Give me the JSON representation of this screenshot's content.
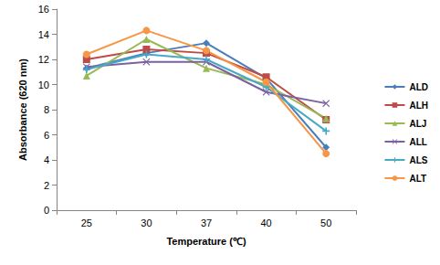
{
  "chart_data": {
    "type": "line",
    "x_label": "Temperature (℃)",
    "y_label": "Absorbance (620 nm)",
    "categories": [
      "25",
      "30",
      "37",
      "40",
      "50"
    ],
    "series": [
      {
        "name": "ALD",
        "color": "#4a7ebb",
        "marker": "diamond",
        "values": [
          11.3,
          12.5,
          13.3,
          10.5,
          5.0
        ]
      },
      {
        "name": "ALH",
        "color": "#be4b48",
        "marker": "square",
        "values": [
          12.0,
          12.8,
          12.5,
          10.6,
          7.2
        ]
      },
      {
        "name": "ALJ",
        "color": "#98b954",
        "marker": "triangle",
        "values": [
          10.7,
          13.6,
          11.3,
          10.0,
          7.3
        ]
      },
      {
        "name": "ALL",
        "color": "#7d60a0",
        "marker": "x",
        "values": [
          11.4,
          11.8,
          11.8,
          9.4,
          8.5
        ]
      },
      {
        "name": "ALS",
        "color": "#46aac5",
        "marker": "plus",
        "values": [
          11.2,
          12.4,
          12.0,
          9.8,
          6.3
        ]
      },
      {
        "name": "ALT",
        "color": "#f79646",
        "marker": "circle",
        "values": [
          12.4,
          14.3,
          12.7,
          10.2,
          4.5
        ]
      }
    ],
    "ylim": [
      0,
      16
    ],
    "yticks": [
      0,
      2,
      4,
      6,
      8,
      10,
      12,
      14,
      16
    ],
    "grid": false,
    "legend": "right"
  }
}
